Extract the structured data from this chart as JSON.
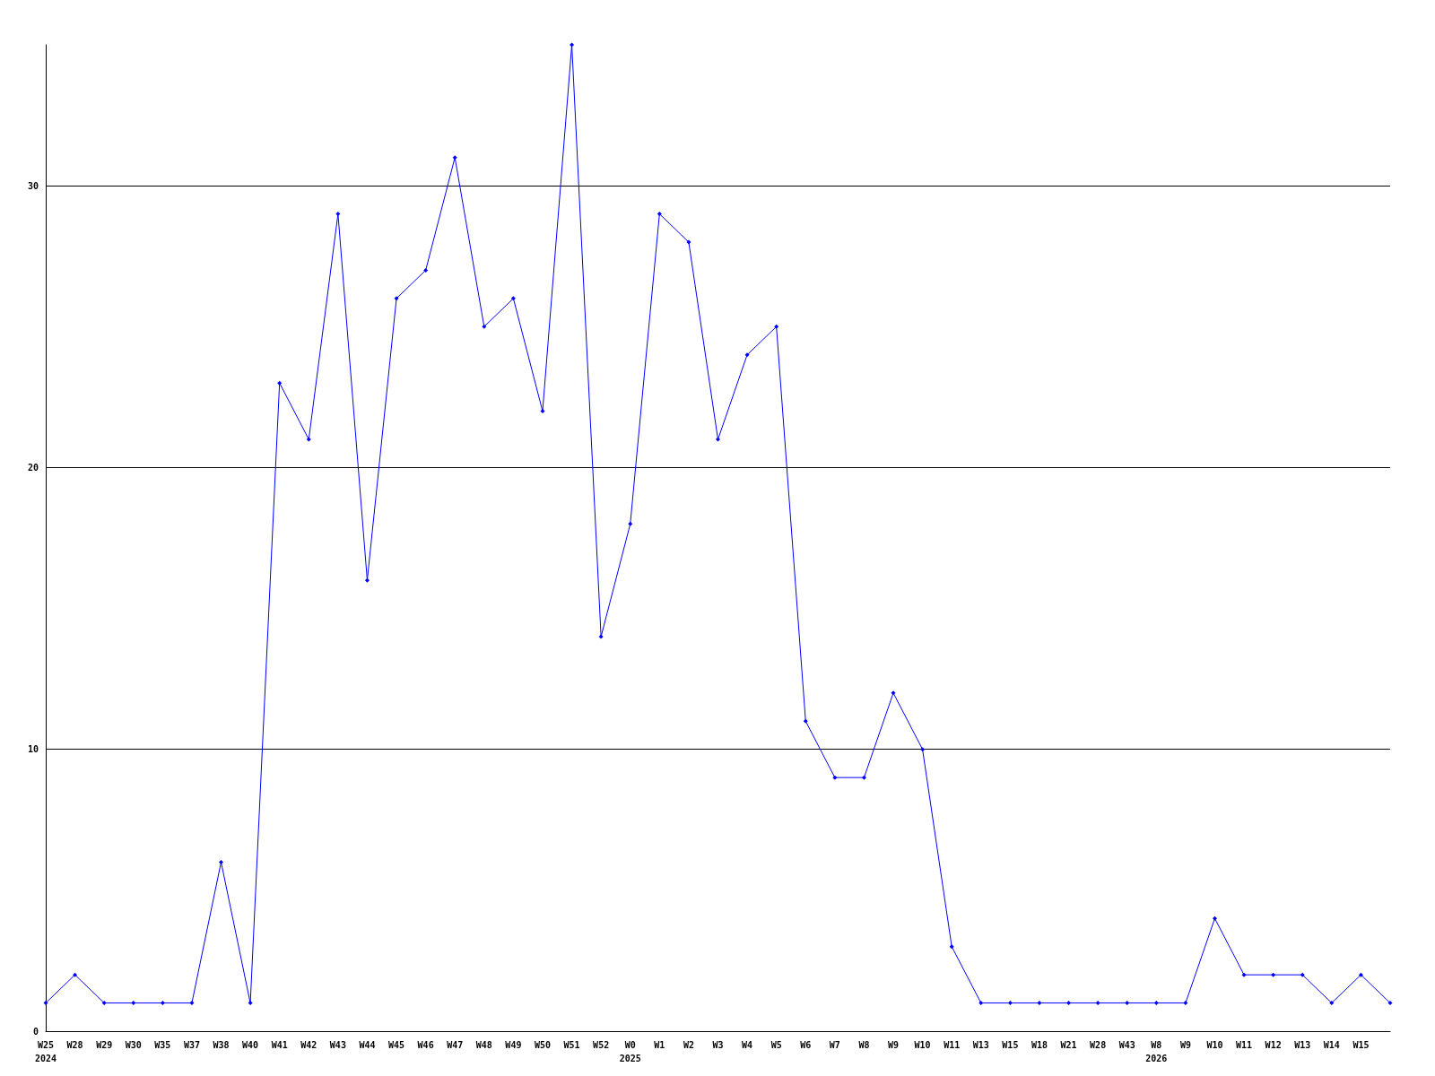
{
  "chart_data": {
    "type": "line",
    "categories": [
      "W25\n2024",
      "W28",
      "W29",
      "W30",
      "W35",
      "W37",
      "W38",
      "W40",
      "W41",
      "W42",
      "W43",
      "W44",
      "W45",
      "W46",
      "W47",
      "W48",
      "W49",
      "W50",
      "W51",
      "W52",
      "W0\n2025",
      "W1",
      "W2",
      "W3",
      "W4",
      "W5",
      "W6",
      "W7",
      "W8",
      "W9",
      "W10",
      "W11",
      "W13",
      "W15",
      "W18",
      "W21",
      "W28",
      "W43",
      "W8\n2026",
      "W9",
      "W10",
      "W11",
      "W12",
      "W13",
      "W14",
      "W15",
      null
    ],
    "series": [
      {
        "color": "#0000ff",
        "values": [
          1,
          2,
          1,
          1,
          1,
          1,
          6,
          1,
          23,
          21,
          29,
          16,
          26,
          27,
          31,
          25,
          26,
          22,
          35,
          14,
          18,
          29,
          28,
          21,
          24,
          25,
          11,
          9,
          9,
          12,
          10,
          3,
          1,
          1,
          1,
          1,
          1,
          1,
          1,
          1,
          4,
          2,
          2,
          2,
          1,
          2,
          1
        ]
      }
    ],
    "ylim": [
      0,
      35
    ],
    "yticks": [
      0,
      10,
      20,
      30
    ],
    "grid": "y",
    "marker": "diamond",
    "line_style": "solid"
  }
}
